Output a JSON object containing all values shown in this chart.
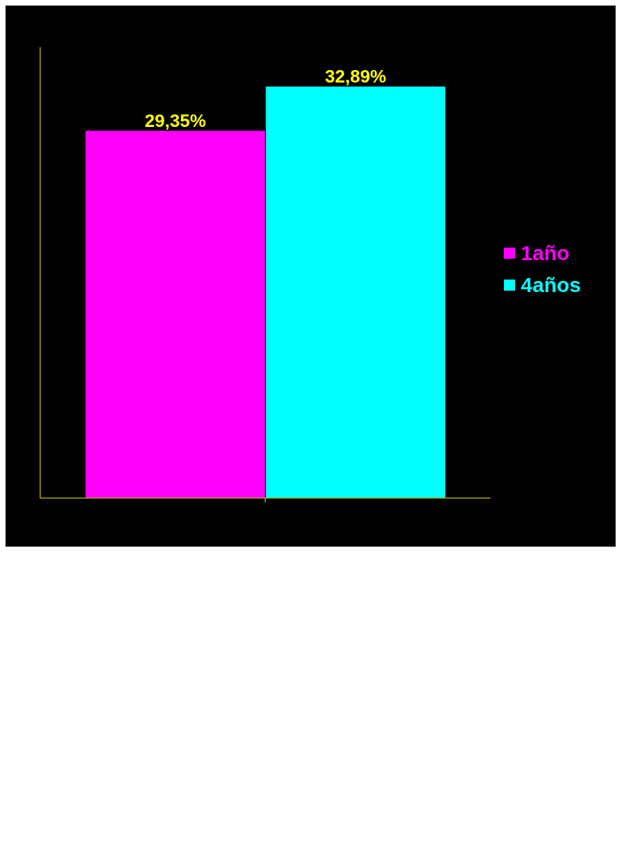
{
  "chart_data": {
    "type": "bar",
    "categories": [
      null
    ],
    "series": [
      {
        "name": "1año",
        "color": "#ff00ff",
        "values": [
          29.35
        ],
        "value_labels": [
          "29,35%"
        ]
      },
      {
        "name": "4años",
        "color": "#00ffff",
        "values": [
          32.89
        ],
        "value_labels": [
          "32,89%"
        ]
      }
    ],
    "ylim": [
      0,
      36
    ],
    "legend": "right"
  }
}
